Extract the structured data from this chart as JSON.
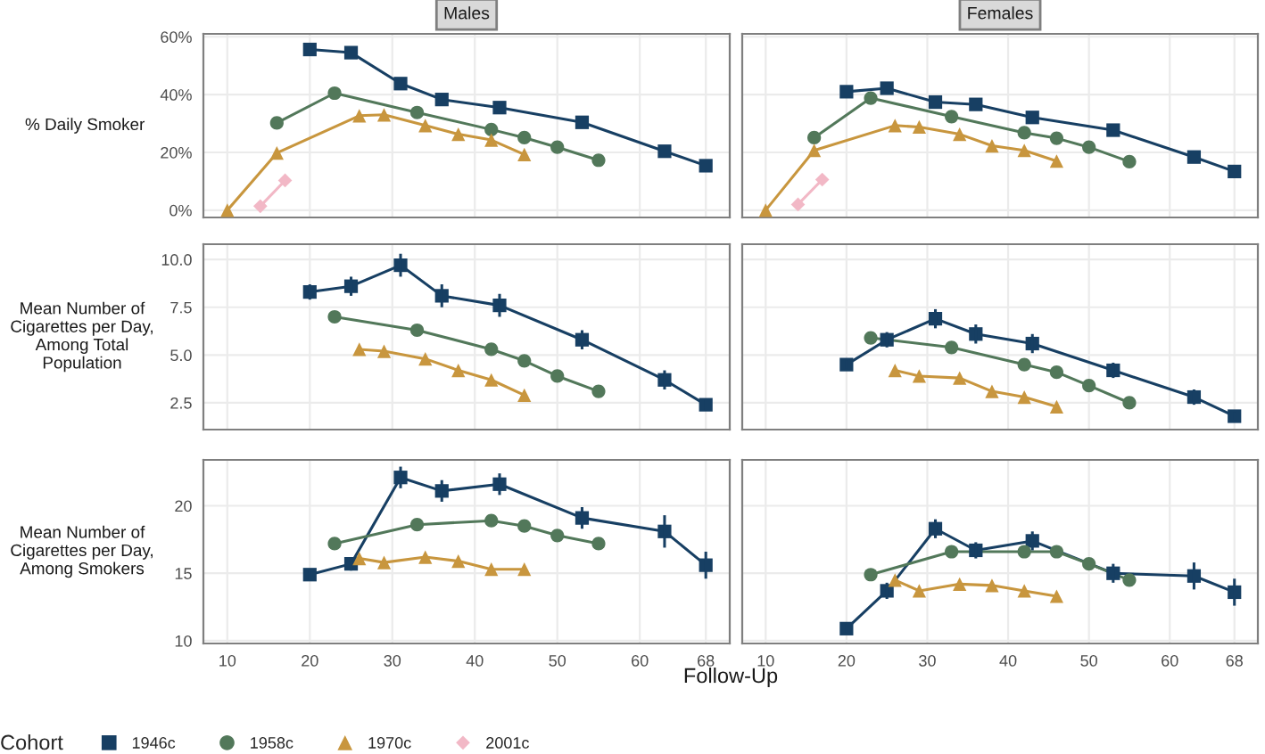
{
  "chart_data": [
    {
      "type": "line",
      "title": "Males",
      "ylabel": "% Daily Smoker",
      "xlim": [
        7.1,
        70.9
      ],
      "xticks": [
        10,
        20,
        30,
        40,
        50,
        60,
        68
      ],
      "ylim": [
        -2.5,
        61
      ],
      "yticks": [
        {
          "value": 0,
          "label": "0%"
        },
        {
          "value": 20,
          "label": "20%"
        },
        {
          "value": 40,
          "label": "40%"
        },
        {
          "value": 60,
          "label": "60%"
        }
      ],
      "grid": true,
      "tick_labels": "y",
      "legend": "bottom",
      "legend_title": "Cohort",
      "series": [
        {
          "name": "1946c",
          "color": "#173f63",
          "marker": "square",
          "x": [
            20,
            25,
            31,
            36,
            43,
            53,
            63,
            68
          ],
          "values": [
            55.6,
            54.5,
            43.8,
            38.3,
            35.5,
            30.4,
            20.4,
            15.4
          ]
        },
        {
          "name": "1958c",
          "color": "#52785a",
          "marker": "circle",
          "x": [
            16,
            23,
            33,
            42,
            46,
            50,
            55
          ],
          "values": [
            30.2,
            40.5,
            33.8,
            27.9,
            25.1,
            21.8,
            17.3
          ]
        },
        {
          "name": "1970c",
          "color": "#c8963e",
          "marker": "triangle",
          "x": [
            10,
            16,
            26,
            29,
            34,
            38,
            42,
            46
          ],
          "values": [
            0,
            19.8,
            32.7,
            33,
            29.3,
            26.3,
            24.3,
            19.3
          ]
        },
        {
          "name": "2001c",
          "color": "#f2b8c6",
          "marker": "diamond",
          "x": [
            14,
            17
          ],
          "values": [
            1.4,
            10.3
          ]
        }
      ]
    },
    {
      "type": "line",
      "title": "Females",
      "xlim": [
        7.1,
        70.9
      ],
      "xticks": [
        10,
        20,
        30,
        40,
        50,
        60,
        68
      ],
      "ylim": [
        -2.5,
        61
      ],
      "yticks": [
        0,
        20,
        40,
        60
      ],
      "grid": true,
      "tick_labels": false,
      "series": [
        {
          "color": "#173f63",
          "marker": "square",
          "x": [
            20,
            25,
            31,
            36,
            43,
            53,
            63,
            68
          ],
          "values": [
            41,
            42.2,
            37.4,
            36.6,
            32.1,
            27.7,
            18.4,
            13.4
          ]
        },
        {
          "color": "#52785a",
          "marker": "circle",
          "x": [
            16,
            23,
            33,
            42,
            46,
            50,
            55
          ],
          "values": [
            25.1,
            38.8,
            32.4,
            26.8,
            24.9,
            21.8,
            16.8
          ]
        },
        {
          "color": "#c8963e",
          "marker": "triangle",
          "x": [
            10,
            16,
            26,
            29,
            34,
            38,
            42,
            46
          ],
          "values": [
            0,
            20.7,
            29.3,
            28.8,
            26.3,
            22.3,
            20.7,
            17
          ]
        },
        {
          "color": "#f2b8c6",
          "marker": "diamond",
          "x": [
            14,
            17
          ],
          "values": [
            2,
            10.6
          ]
        }
      ]
    },
    {
      "type": "line",
      "ylabel": "Mean Number of\nCigarettes per Day,\nAmong Total\nPopulation",
      "xlim": [
        7.1,
        70.9
      ],
      "xticks": [
        10,
        20,
        30,
        40,
        50,
        60,
        68
      ],
      "ylim": [
        1.1,
        10.8
      ],
      "yticks": [
        {
          "value": 2.5,
          "label": "2.5"
        },
        {
          "value": 5,
          "label": "5.0"
        },
        {
          "value": 7.5,
          "label": "7.5"
        },
        {
          "value": 10,
          "label": "10.0"
        }
      ],
      "grid": true,
      "tick_labels": "y",
      "series": [
        {
          "color": "#173f63",
          "marker": "square",
          "x": [
            20,
            25,
            31,
            36,
            43,
            53,
            63,
            68
          ],
          "values": [
            8.3,
            8.6,
            9.7,
            8.1,
            7.6,
            5.8,
            3.7,
            2.4
          ],
          "errors": [
            0.4,
            0.5,
            0.6,
            0.6,
            0.6,
            0.5,
            0.5,
            0.3
          ]
        },
        {
          "color": "#52785a",
          "marker": "circle",
          "x": [
            23,
            33,
            42,
            46,
            50,
            55
          ],
          "values": [
            7.0,
            6.3,
            5.3,
            4.7,
            3.9,
            3.1
          ]
        },
        {
          "color": "#c8963e",
          "marker": "triangle",
          "x": [
            26,
            29,
            34,
            38,
            42,
            46
          ],
          "values": [
            5.3,
            5.2,
            4.8,
            4.2,
            3.7,
            2.9
          ]
        }
      ]
    },
    {
      "type": "line",
      "xlim": [
        7.1,
        70.9
      ],
      "xticks": [
        10,
        20,
        30,
        40,
        50,
        60,
        68
      ],
      "ylim": [
        1.1,
        10.8
      ],
      "yticks": [
        2.5,
        5,
        7.5,
        10
      ],
      "grid": true,
      "tick_labels": false,
      "series": [
        {
          "color": "#173f63",
          "marker": "square",
          "x": [
            20,
            25,
            31,
            36,
            43,
            53,
            63,
            68
          ],
          "values": [
            4.5,
            5.8,
            6.9,
            6.1,
            5.6,
            4.2,
            2.8,
            1.8
          ],
          "errors": [
            0.2,
            0.4,
            0.5,
            0.5,
            0.5,
            0.4,
            0.4,
            0.2
          ]
        },
        {
          "color": "#52785a",
          "marker": "circle",
          "x": [
            23,
            33,
            42,
            46,
            50,
            55
          ],
          "values": [
            5.9,
            5.4,
            4.5,
            4.1,
            3.4,
            2.5
          ]
        },
        {
          "color": "#c8963e",
          "marker": "triangle",
          "x": [
            26,
            29,
            34,
            38,
            42,
            46
          ],
          "values": [
            4.2,
            3.9,
            3.8,
            3.1,
            2.8,
            2.3
          ]
        }
      ]
    },
    {
      "type": "line",
      "ylabel": "Mean Number of\nCigarettes per Day,\nAmong Smokers",
      "xlabel": "Follow-Up",
      "xlim": [
        7.1,
        70.9
      ],
      "xticks": [
        10,
        20,
        30,
        40,
        50,
        60,
        68
      ],
      "ylim": [
        9.8,
        23.4
      ],
      "yticks": [
        10,
        15,
        20
      ],
      "grid": true,
      "series": [
        {
          "color": "#173f63",
          "marker": "square",
          "x": [
            20,
            25,
            31,
            36,
            43,
            53,
            63,
            68
          ],
          "values": [
            14.9,
            15.7,
            22.1,
            21.1,
            21.6,
            19.1,
            18.1,
            15.6
          ],
          "errors": [
            0.4,
            0.5,
            0.8,
            0.8,
            0.8,
            0.8,
            1.2,
            1.0
          ]
        },
        {
          "color": "#52785a",
          "marker": "circle",
          "x": [
            23,
            33,
            42,
            46,
            50,
            55
          ],
          "values": [
            17.2,
            18.6,
            18.9,
            18.5,
            17.8,
            17.2
          ]
        },
        {
          "color": "#c8963e",
          "marker": "triangle",
          "x": [
            26,
            29,
            34,
            38,
            42,
            46
          ],
          "values": [
            16.1,
            15.8,
            16.2,
            15.9,
            15.3,
            15.3
          ]
        }
      ]
    },
    {
      "type": "line",
      "xlim": [
        7.1,
        70.9
      ],
      "xticks": [
        10,
        20,
        30,
        40,
        50,
        60,
        68
      ],
      "ylim": [
        9.8,
        23.4
      ],
      "yticks": [
        10,
        15,
        20
      ],
      "grid": true,
      "tick_labels": "x",
      "series": [
        {
          "color": "#173f63",
          "marker": "square",
          "x": [
            20,
            25,
            31,
            36,
            43,
            53,
            63,
            68
          ],
          "values": [
            10.9,
            13.7,
            18.3,
            16.7,
            17.4,
            15.0,
            14.8,
            13.6
          ],
          "errors": [
            0.3,
            0.6,
            0.7,
            0.6,
            0.7,
            0.7,
            1.0,
            1.0
          ]
        },
        {
          "color": "#52785a",
          "marker": "circle",
          "x": [
            23,
            33,
            42,
            46,
            50,
            55
          ],
          "values": [
            14.9,
            16.6,
            16.6,
            16.6,
            15.7,
            14.5
          ]
        },
        {
          "color": "#c8963e",
          "marker": "triangle",
          "x": [
            26,
            29,
            34,
            38,
            42,
            46
          ],
          "values": [
            14.5,
            13.7,
            14.2,
            14.1,
            13.7,
            13.3
          ]
        }
      ]
    }
  ]
}
